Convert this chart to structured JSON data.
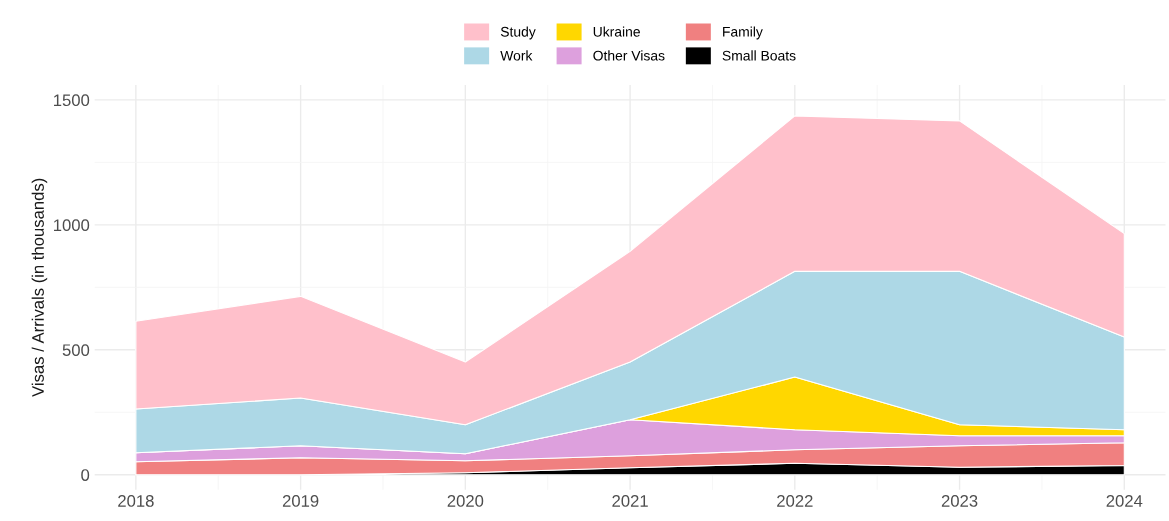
{
  "chart_data": {
    "type": "area",
    "stacked": true,
    "ylabel": "Visas / Arrivals (in thousands)",
    "x": [
      2018,
      2019,
      2020,
      2021,
      2022,
      2023,
      2024
    ],
    "series": [
      {
        "name": "Small Boats",
        "color": "#000000",
        "values": [
          0,
          0,
          8,
          28,
          46,
          30,
          37
        ]
      },
      {
        "name": "Family",
        "color": "#f08080",
        "values": [
          52,
          68,
          48,
          48,
          54,
          86,
          91
        ]
      },
      {
        "name": "Other Visas",
        "color": "#dda0dd",
        "values": [
          36,
          48,
          28,
          144,
          80,
          40,
          28
        ]
      },
      {
        "name": "Ukraine",
        "color": "#ffd700",
        "values": [
          0,
          0,
          0,
          0,
          211,
          44,
          24
        ]
      },
      {
        "name": "Work",
        "color": "#add8e6",
        "values": [
          175,
          191,
          116,
          231,
          423,
          614,
          371
        ]
      },
      {
        "name": "Study",
        "color": "#ffc0cb",
        "values": [
          351,
          407,
          251,
          443,
          622,
          602,
          414
        ]
      }
    ],
    "xlim": [
      2017.75,
      2024.25
    ],
    "xticks": [
      2018,
      2019,
      2020,
      2021,
      2022,
      2023,
      2024
    ],
    "ylim": [
      -60,
      1560
    ],
    "yticks": [
      0,
      500,
      1000,
      1500
    ],
    "grid": true,
    "legend": "top"
  }
}
